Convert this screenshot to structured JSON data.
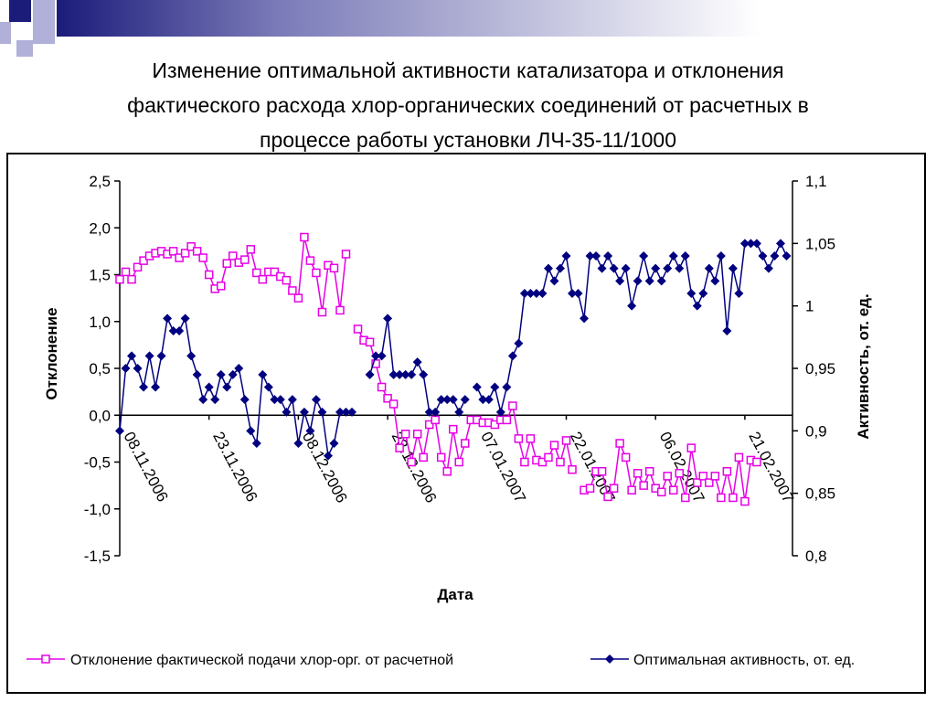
{
  "title_lines": [
    "Изменение оптимальной активности катализатора и отклонения",
    "фактического расхода хлор-органических соединений от расчетных в",
    "процессе работы установки ЛЧ-35-11/1000"
  ],
  "colors": {
    "series_deviation": "#e600e6",
    "series_activity": "#000080",
    "deco_navy": "#1b1b7a",
    "deco_light": "#b0b0d8"
  },
  "chart_data": {
    "type": "line",
    "title": "Изменение оптимальной активности катализатора и отклонения фактического расхода хлор-органических соединений от расчетных в процессе работы установки ЛЧ-35-11/1000",
    "xlabel": "Дата",
    "ylabel": "Отклонение",
    "y2label": "Активность, от. ед.",
    "ylim": [
      -1.5,
      2.5
    ],
    "y2lim": [
      0.8,
      1.1
    ],
    "y_ticks": [
      "2,5",
      "2,0",
      "1,5",
      "1,0",
      "0,5",
      "0,0",
      "-0,5",
      "-1,0",
      "-1,5"
    ],
    "y2_ticks": [
      "1,1",
      "1,05",
      "1",
      "0,95",
      "0,9",
      "0,85",
      "0,8"
    ],
    "x_tick_labels": [
      "08.11.2006",
      "23.11.2006",
      "08.12.2006",
      "23.12.2006",
      "07.01.2007",
      "22.01.2007",
      "06.02.2007",
      "21.02.2007"
    ],
    "x_range": [
      "08.11.2006",
      "01.03.2007"
    ],
    "grid": false,
    "legend_position": "bottom",
    "series": [
      {
        "name": "Отклонение фактической подачи хлор-орг. от расчетной",
        "axis": "left",
        "marker": "square-open",
        "points": [
          [
            "08.11.2006",
            1.45
          ],
          [
            "09.11.2006",
            1.53
          ],
          [
            "10.11.2006",
            1.45
          ],
          [
            "11.11.2006",
            1.58
          ],
          [
            "12.11.2006",
            1.65
          ],
          [
            "13.11.2006",
            1.7
          ],
          [
            "14.11.2006",
            1.73
          ],
          [
            "15.11.2006",
            1.75
          ],
          [
            "16.11.2006",
            1.72
          ],
          [
            "17.11.2006",
            1.75
          ],
          [
            "18.11.2006",
            1.68
          ],
          [
            "19.11.2006",
            1.73
          ],
          [
            "20.11.2006",
            1.8
          ],
          [
            "21.11.2006",
            1.75
          ],
          [
            "22.11.2006",
            1.68
          ],
          [
            "23.11.2006",
            1.5
          ],
          [
            "24.11.2006",
            1.35
          ],
          [
            "25.11.2006",
            1.38
          ],
          [
            "26.11.2006",
            1.62
          ],
          [
            "27.11.2006",
            1.7
          ],
          [
            "28.11.2006",
            1.63
          ],
          [
            "29.11.2006",
            1.66
          ],
          [
            "30.11.2006",
            1.77
          ],
          [
            "01.12.2006",
            1.52
          ],
          [
            "02.12.2006",
            1.45
          ],
          [
            "03.12.2006",
            1.53
          ],
          [
            "04.12.2006",
            1.53
          ],
          [
            "05.12.2006",
            1.48
          ],
          [
            "06.12.2006",
            1.44
          ],
          [
            "07.12.2006",
            1.33
          ],
          [
            "08.12.2006",
            1.25
          ],
          [
            "09.12.2006",
            1.9
          ],
          [
            "10.12.2006",
            1.65
          ],
          [
            "11.12.2006",
            1.52
          ],
          [
            "12.12.2006",
            1.1
          ],
          [
            "13.12.2006",
            1.6
          ],
          [
            "14.12.2006",
            1.57
          ],
          [
            "15.12.2006",
            1.12
          ],
          [
            "16.12.2006",
            1.72
          ],
          null,
          [
            "18.12.2006",
            0.92
          ],
          [
            "19.12.2006",
            0.8
          ],
          [
            "20.12.2006",
            0.78
          ],
          [
            "21.12.2006",
            0.55
          ],
          [
            "22.12.2006",
            0.3
          ],
          [
            "23.12.2006",
            0.18
          ],
          [
            "24.12.2006",
            0.12
          ],
          [
            "25.12.2006",
            -0.35
          ],
          [
            "26.12.2006",
            -0.2
          ],
          [
            "27.12.2006",
            -0.5
          ],
          [
            "28.12.2006",
            -0.2
          ],
          [
            "29.12.2006",
            -0.45
          ],
          [
            "30.12.2006",
            -0.1
          ],
          [
            "31.12.2006",
            -0.05
          ],
          [
            "01.01.2007",
            -0.45
          ],
          [
            "02.01.2007",
            -0.6
          ],
          [
            "03.01.2007",
            -0.15
          ],
          [
            "04.01.2007",
            -0.5
          ],
          [
            "05.01.2007",
            -0.3
          ],
          [
            "06.01.2007",
            -0.05
          ],
          [
            "07.01.2007",
            -0.05
          ],
          [
            "08.01.2007",
            -0.08
          ],
          [
            "09.01.2007",
            -0.08
          ],
          [
            "10.01.2007",
            -0.1
          ],
          [
            "11.01.2007",
            -0.05
          ],
          [
            "12.01.2007",
            -0.05
          ],
          [
            "13.01.2007",
            0.1
          ],
          [
            "14.01.2007",
            -0.25
          ],
          [
            "15.01.2007",
            -0.5
          ],
          [
            "16.01.2007",
            -0.25
          ],
          [
            "17.01.2007",
            -0.48
          ],
          [
            "18.01.2007",
            -0.5
          ],
          [
            "19.01.2007",
            -0.45
          ],
          [
            "20.01.2007",
            -0.32
          ],
          [
            "21.01.2007",
            -0.5
          ],
          [
            "22.01.2007",
            -0.27
          ],
          [
            "23.01.2007",
            -0.58
          ],
          null,
          [
            "25.01.2007",
            -0.8
          ],
          [
            "26.01.2007",
            -0.78
          ],
          [
            "27.01.2007",
            -0.6
          ],
          [
            "28.01.2007",
            -0.6
          ],
          [
            "29.01.2007",
            -0.87
          ],
          [
            "30.01.2007",
            -0.78
          ],
          [
            "31.01.2007",
            -0.3
          ],
          [
            "01.02.2007",
            -0.45
          ],
          [
            "02.02.2007",
            -0.8
          ],
          [
            "03.02.2007",
            -0.62
          ],
          [
            "04.02.2007",
            -0.75
          ],
          [
            "05.02.2007",
            -0.6
          ],
          [
            "06.02.2007",
            -0.78
          ],
          [
            "07.02.2007",
            -0.82
          ],
          [
            "08.02.2007",
            -0.65
          ],
          [
            "09.02.2007",
            -0.8
          ],
          [
            "10.02.2007",
            -0.62
          ],
          [
            "11.02.2007",
            -0.88
          ],
          [
            "12.02.2007",
            -0.35
          ],
          [
            "13.02.2007",
            -0.72
          ],
          [
            "14.02.2007",
            -0.65
          ],
          [
            "15.02.2007",
            -0.72
          ],
          [
            "16.02.2007",
            -0.65
          ],
          [
            "17.02.2007",
            -0.88
          ],
          [
            "18.02.2007",
            -0.6
          ],
          [
            "19.02.2007",
            -0.88
          ],
          [
            "20.02.2007",
            -0.45
          ],
          [
            "21.02.2007",
            -0.92
          ],
          [
            "22.02.2007",
            -0.48
          ],
          [
            "23.02.2007",
            -0.5
          ]
        ]
      },
      {
        "name": "Оптимальная активность, от. ед.",
        "axis": "right",
        "marker": "diamond-filled",
        "points": [
          [
            "08.11.2006",
            0.9
          ],
          [
            "09.11.2006",
            0.95
          ],
          [
            "10.11.2006",
            0.96
          ],
          [
            "11.11.2006",
            0.95
          ],
          [
            "12.11.2006",
            0.935
          ],
          [
            "13.11.2006",
            0.96
          ],
          [
            "14.11.2006",
            0.935
          ],
          [
            "15.11.2006",
            0.96
          ],
          [
            "16.11.2006",
            0.99
          ],
          [
            "17.11.2006",
            0.98
          ],
          [
            "18.11.2006",
            0.98
          ],
          [
            "19.11.2006",
            0.99
          ],
          [
            "20.11.2006",
            0.96
          ],
          [
            "21.11.2006",
            0.945
          ],
          [
            "22.11.2006",
            0.925
          ],
          [
            "23.11.2006",
            0.935
          ],
          [
            "24.11.2006",
            0.925
          ],
          [
            "25.11.2006",
            0.945
          ],
          [
            "26.11.2006",
            0.935
          ],
          [
            "27.11.2006",
            0.945
          ],
          [
            "28.11.2006",
            0.95
          ],
          [
            "29.11.2006",
            0.925
          ],
          [
            "30.11.2006",
            0.9
          ],
          [
            "01.12.2006",
            0.89
          ],
          [
            "02.12.2006",
            0.945
          ],
          [
            "03.12.2006",
            0.935
          ],
          [
            "04.12.2006",
            0.925
          ],
          [
            "05.12.2006",
            0.925
          ],
          [
            "06.12.2006",
            0.915
          ],
          [
            "07.12.2006",
            0.925
          ],
          [
            "08.12.2006",
            0.89
          ],
          [
            "09.12.2006",
            0.915
          ],
          [
            "10.12.2006",
            0.9
          ],
          [
            "11.12.2006",
            0.925
          ],
          [
            "12.12.2006",
            0.915
          ],
          [
            "13.12.2006",
            0.88
          ],
          [
            "14.12.2006",
            0.89
          ],
          [
            "15.12.2006",
            0.915
          ],
          [
            "16.12.2006",
            0.915
          ],
          [
            "17.12.2006",
            0.915
          ],
          null,
          [
            "20.12.2006",
            0.945
          ],
          [
            "21.12.2006",
            0.96
          ],
          [
            "22.12.2006",
            0.96
          ],
          [
            "23.12.2006",
            0.99
          ],
          [
            "24.12.2006",
            0.945
          ],
          [
            "25.12.2006",
            0.945
          ],
          [
            "26.12.2006",
            0.945
          ],
          [
            "27.12.2006",
            0.945
          ],
          [
            "28.12.2006",
            0.955
          ],
          [
            "29.12.2006",
            0.945
          ],
          [
            "30.12.2006",
            0.915
          ],
          [
            "31.12.2006",
            0.915
          ],
          [
            "01.01.2007",
            0.925
          ],
          [
            "02.01.2007",
            0.925
          ],
          [
            "03.01.2007",
            0.925
          ],
          [
            "04.01.2007",
            0.915
          ],
          [
            "05.01.2007",
            0.925
          ],
          null,
          [
            "07.01.2007",
            0.935
          ],
          [
            "08.01.2007",
            0.925
          ],
          [
            "09.01.2007",
            0.925
          ],
          [
            "10.01.2007",
            0.935
          ],
          [
            "11.01.2007",
            0.915
          ],
          [
            "12.01.2007",
            0.935
          ],
          [
            "13.01.2007",
            0.96
          ],
          [
            "14.01.2007",
            0.97
          ],
          [
            "15.01.2007",
            1.01
          ],
          [
            "16.01.2007",
            1.01
          ],
          [
            "17.01.2007",
            1.01
          ],
          [
            "18.01.2007",
            1.01
          ],
          [
            "19.01.2007",
            1.03
          ],
          [
            "20.01.2007",
            1.02
          ],
          [
            "21.01.2007",
            1.03
          ],
          [
            "22.01.2007",
            1.04
          ],
          [
            "23.01.2007",
            1.01
          ],
          [
            "24.01.2007",
            1.01
          ],
          [
            "25.01.2007",
            0.99
          ],
          [
            "26.01.2007",
            1.04
          ],
          [
            "27.01.2007",
            1.04
          ],
          [
            "28.01.2007",
            1.03
          ],
          [
            "29.01.2007",
            1.04
          ],
          [
            "30.01.2007",
            1.03
          ],
          [
            "31.01.2007",
            1.02
          ],
          [
            "01.02.2007",
            1.03
          ],
          [
            "02.02.2007",
            1.0
          ],
          [
            "03.02.2007",
            1.02
          ],
          [
            "04.02.2007",
            1.04
          ],
          [
            "05.02.2007",
            1.02
          ],
          [
            "06.02.2007",
            1.03
          ],
          [
            "07.02.2007",
            1.02
          ],
          [
            "08.02.2007",
            1.03
          ],
          [
            "09.02.2007",
            1.04
          ],
          [
            "10.02.2007",
            1.03
          ],
          [
            "11.02.2007",
            1.04
          ],
          [
            "12.02.2007",
            1.01
          ],
          [
            "13.02.2007",
            1.0
          ],
          [
            "14.02.2007",
            1.01
          ],
          [
            "15.02.2007",
            1.03
          ],
          [
            "16.02.2007",
            1.02
          ],
          [
            "17.02.2007",
            1.04
          ],
          [
            "18.02.2007",
            0.98
          ],
          [
            "19.02.2007",
            1.03
          ],
          [
            "20.02.2007",
            1.01
          ],
          [
            "21.02.2007",
            1.05
          ],
          [
            "22.02.2007",
            1.05
          ],
          [
            "23.02.2007",
            1.05
          ],
          [
            "24.02.2007",
            1.04
          ],
          [
            "25.02.2007",
            1.03
          ],
          [
            "26.02.2007",
            1.04
          ],
          [
            "27.02.2007",
            1.05
          ],
          [
            "28.02.2007",
            1.04
          ]
        ]
      }
    ]
  }
}
